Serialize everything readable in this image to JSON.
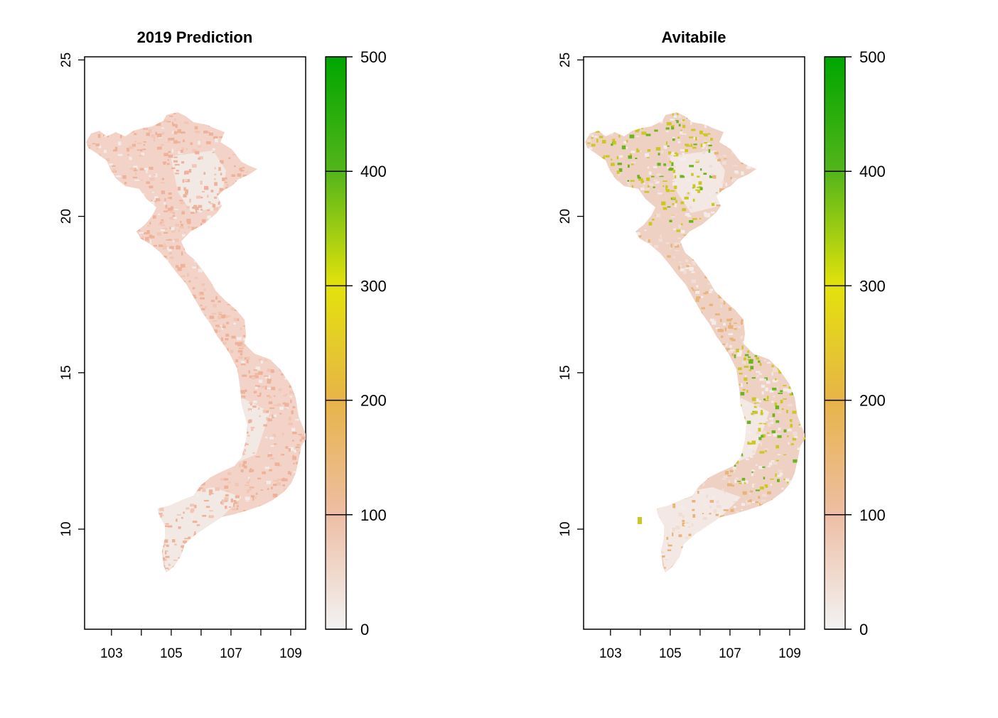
{
  "panels": [
    {
      "id": "prediction",
      "title": "2019 Prediction",
      "variant": "low"
    },
    {
      "id": "avitabile",
      "title": "Avitabile",
      "variant": "high"
    }
  ],
  "axes": {
    "x_range": [
      102.1,
      109.5
    ],
    "y_range": [
      6.8,
      25.1
    ],
    "x_ticks": [
      {
        "value": 103,
        "label": "103"
      },
      {
        "value": 104,
        "label": ""
      },
      {
        "value": 105,
        "label": "105"
      },
      {
        "value": 106,
        "label": ""
      },
      {
        "value": 107,
        "label": "107"
      },
      {
        "value": 108,
        "label": ""
      },
      {
        "value": 109,
        "label": "109"
      }
    ],
    "y_ticks": [
      {
        "value": 10,
        "label": "10"
      },
      {
        "value": 15,
        "label": "15"
      },
      {
        "value": 20,
        "label": "20"
      },
      {
        "value": 25,
        "label": "25"
      }
    ]
  },
  "legend": {
    "range": [
      0,
      500
    ],
    "ticks": [
      {
        "value": 0,
        "label": "0"
      },
      {
        "value": 100,
        "label": "100"
      },
      {
        "value": 200,
        "label": "200"
      },
      {
        "value": 300,
        "label": "300"
      },
      {
        "value": 400,
        "label": "400"
      },
      {
        "value": 500,
        "label": "500"
      }
    ],
    "colors": [
      "#f2f2f2",
      "#eebea5",
      "#e7b448",
      "#e3e20c",
      "#53b51a",
      "#00a600"
    ]
  },
  "map_colors": {
    "prediction_base": "#f3d3c7",
    "prediction_patch": "#eeb199",
    "prediction_light": "#f1ebe9",
    "avitabile_base": "#efd1c4",
    "avitabile_yellow": "#cdc722",
    "avitabile_green": "#6cb51e",
    "avitabile_light": "#f3ece9"
  }
}
